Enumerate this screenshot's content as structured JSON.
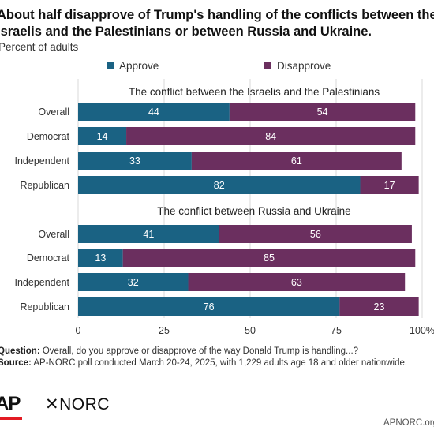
{
  "title": "About half disapprove of Trump's handling of the conflicts between the Israelis and the Palestinians or between Russia and Ukraine.",
  "subtitle": "Percent of adults",
  "colors": {
    "approve": "#1a6283",
    "disapprove": "#6b2f5f",
    "grid": "#d9d9d9"
  },
  "chart_data": {
    "type": "bar",
    "orientation": "horizontal",
    "stacked": true,
    "legend": [
      "Approve",
      "Disapprove"
    ],
    "xlim": [
      0,
      100
    ],
    "x_ticks": [
      "0",
      "25",
      "50",
      "75",
      "100%"
    ],
    "grid": true,
    "groups": [
      {
        "title": "The conflict between the Israelis and the Palestinians",
        "categories": [
          "Overall",
          "Democrat",
          "Independent",
          "Republican"
        ],
        "series": [
          {
            "name": "Approve",
            "values": [
              44,
              14,
              33,
              82
            ]
          },
          {
            "name": "Disapprove",
            "values": [
              54,
              84,
              61,
              17
            ]
          }
        ]
      },
      {
        "title": "The conflict between Russia and Ukraine",
        "categories": [
          "Overall",
          "Democrat",
          "Independent",
          "Republican"
        ],
        "series": [
          {
            "name": "Approve",
            "values": [
              41,
              13,
              32,
              76
            ]
          },
          {
            "name": "Disapprove",
            "values": [
              56,
              85,
              63,
              23
            ]
          }
        ]
      }
    ]
  },
  "notes": {
    "question_label": "Question:",
    "question": " Overall, do you approve or disapprove of the way Donald Trump is handling...?",
    "source_label": "Source:",
    "source": " AP-NORC poll conducted March 20-24, 2025, with 1,229 adults age 18 and older nationwide."
  },
  "footer": {
    "logo_ap": "AP",
    "logo_norc": "✕NORC",
    "site": "APNORC.org"
  }
}
